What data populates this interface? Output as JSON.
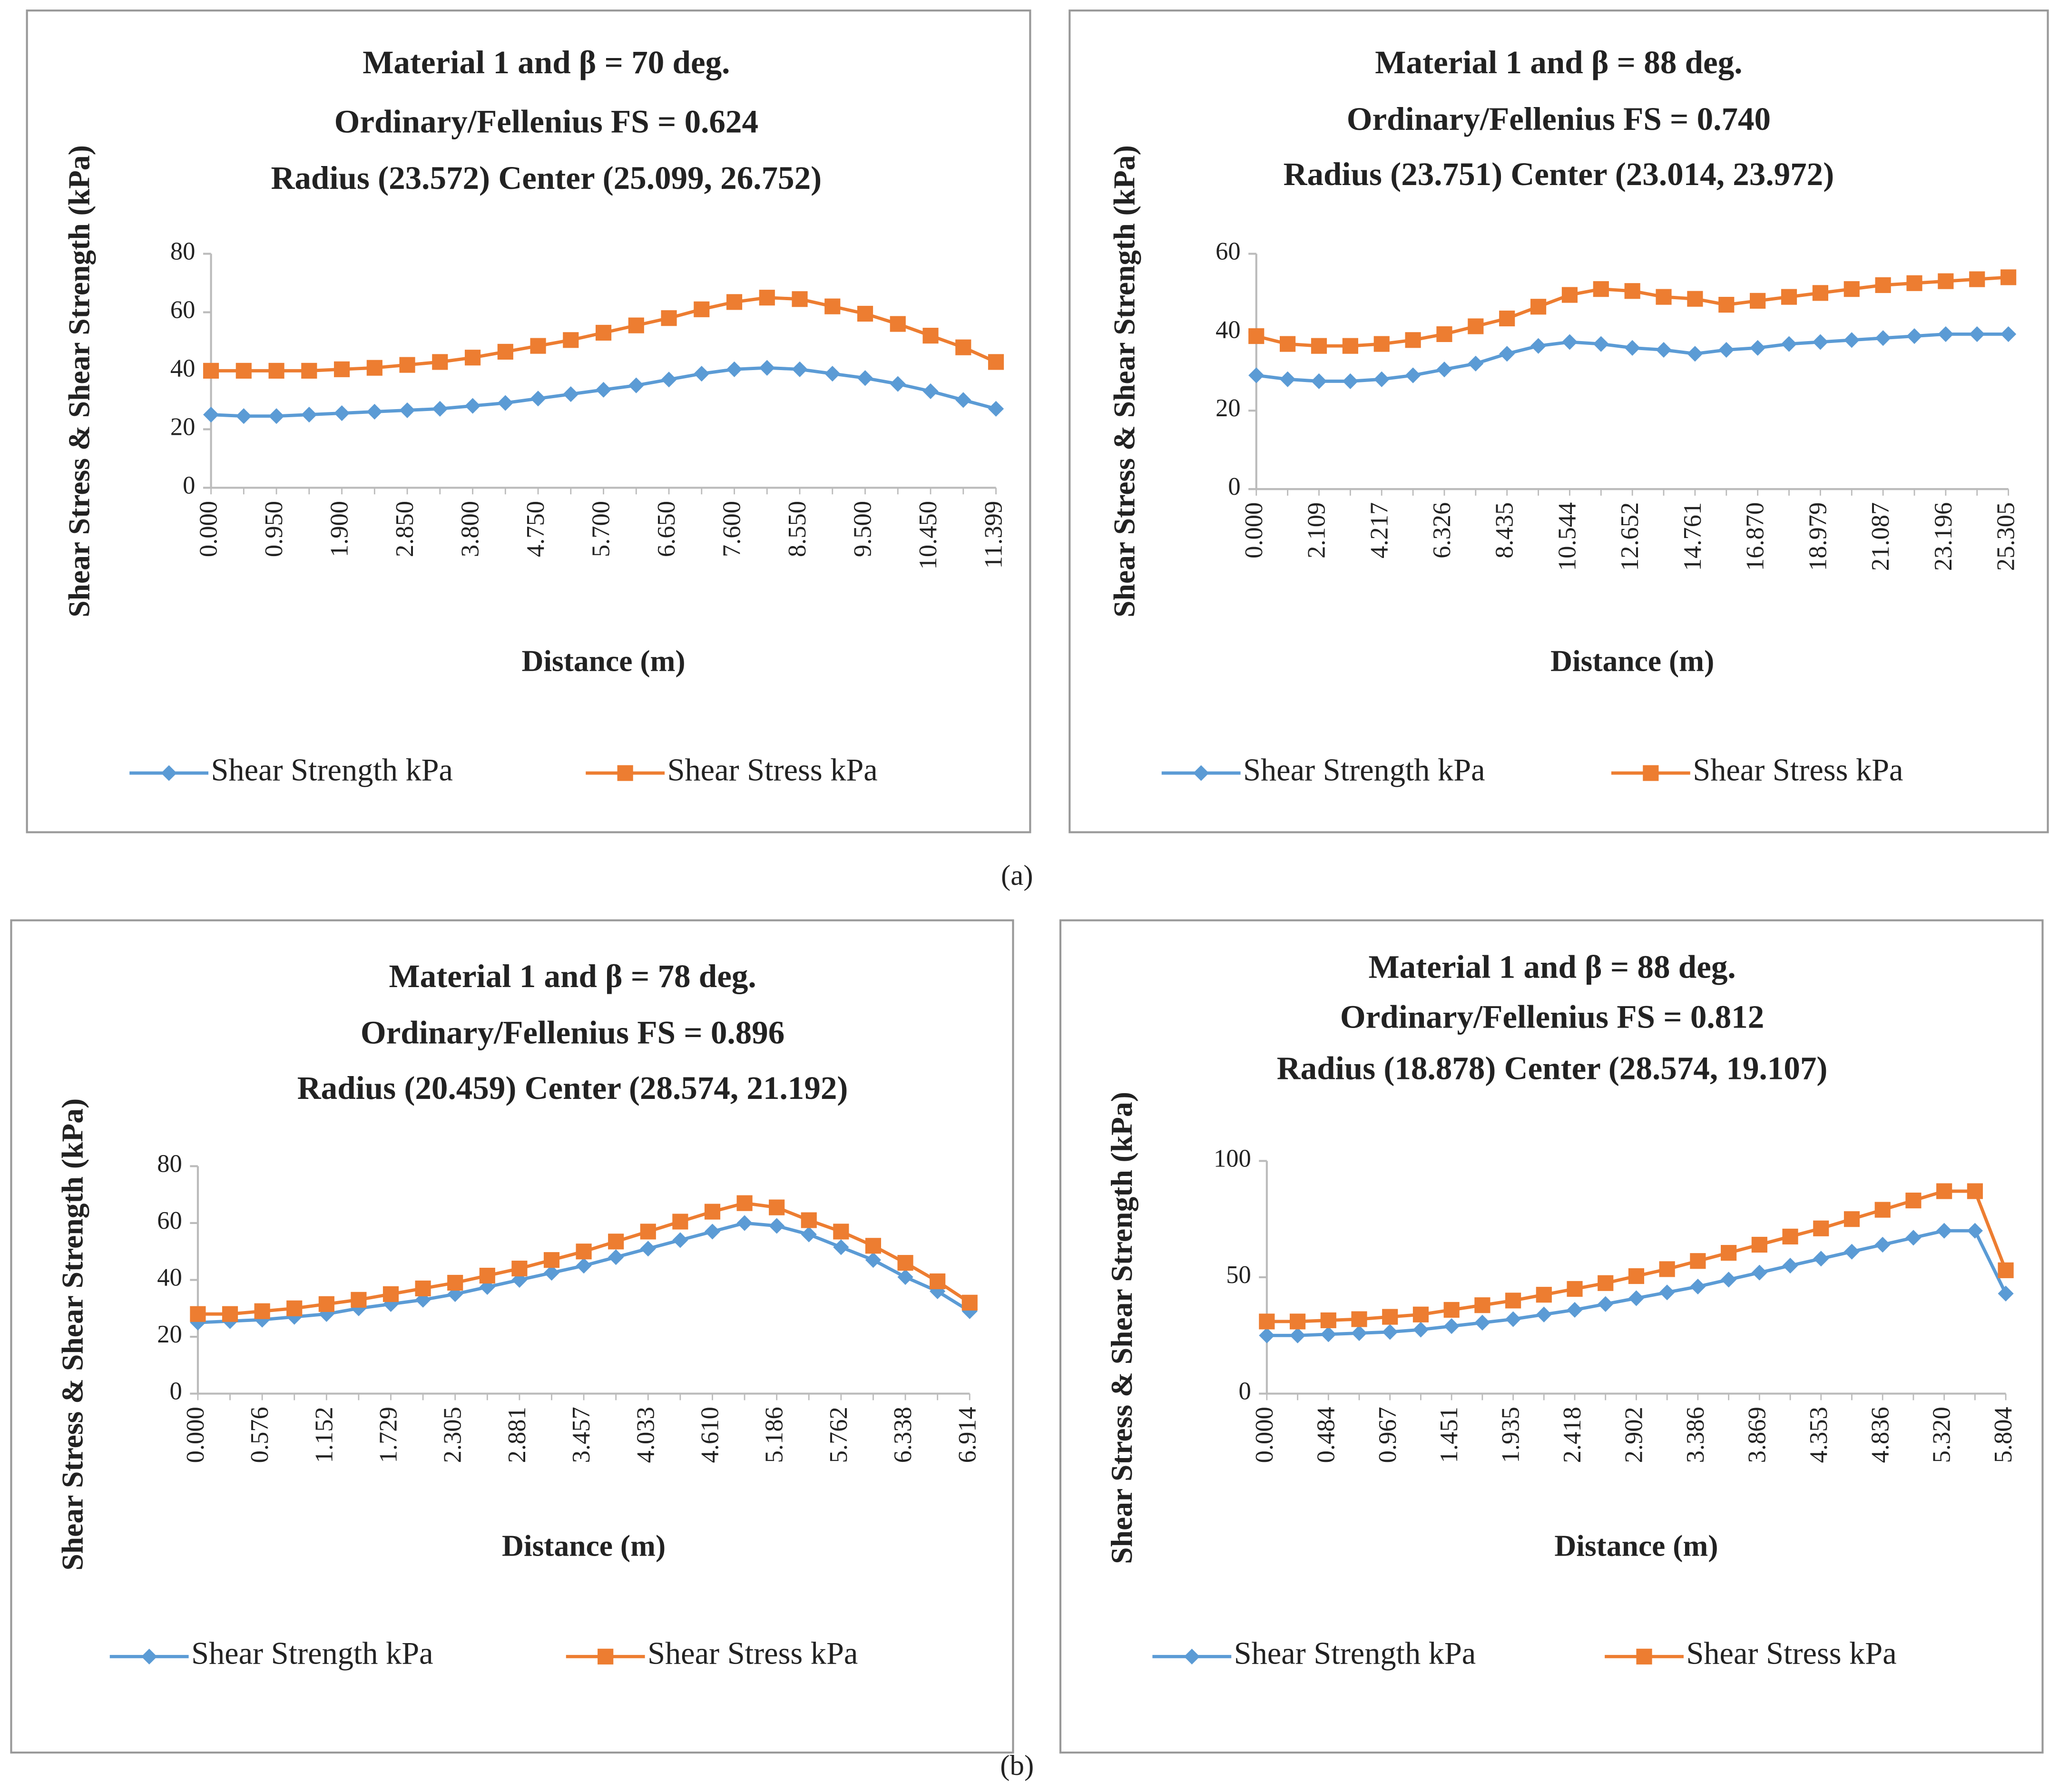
{
  "captions": [
    "(a)",
    "(b)"
  ],
  "chart_data": [
    {
      "type": "line",
      "title": [
        "Material 1 and β = 70 deg.",
        "Ordinary/Fellenius FS = 0.624",
        "Radius (23.572)  Center (25.099, 26.752)"
      ],
      "x_label": "Distance (m)",
      "y_label": "Shear Stress & Shear Strength (kPa)",
      "categories": [
        "0.000",
        null,
        "0.950",
        null,
        "1.900",
        null,
        "2.850",
        null,
        "3.800",
        null,
        "4.750",
        null,
        "5.700",
        null,
        "6.650",
        null,
        "7.600",
        null,
        "8.550",
        null,
        "9.500",
        null,
        "10.450",
        null,
        "11.399"
      ],
      "series": [
        {
          "name": "Shear Strength kPa",
          "color": "#5b9bd5",
          "values": [
            25,
            24.5,
            24.5,
            25,
            25.5,
            26,
            26.5,
            27,
            28,
            29,
            30.5,
            32,
            33.5,
            35,
            37,
            39,
            40.5,
            41,
            40.5,
            39,
            37.5,
            35.5,
            33,
            30,
            27
          ]
        },
        {
          "name": "Shear Stress kPa",
          "color": "#ed7d31",
          "values": [
            40,
            40,
            40,
            40,
            40.5,
            41,
            42,
            43,
            44.5,
            46.5,
            48.5,
            50.5,
            53,
            55.5,
            58,
            61,
            63.5,
            65,
            64.5,
            62,
            59.5,
            56,
            52,
            48,
            43
          ]
        }
      ],
      "ylim": [
        0,
        80
      ],
      "yticks": [
        0,
        20,
        40,
        60,
        80
      ],
      "legend": "bottom"
    },
    {
      "type": "line",
      "title": [
        "Material 1 and β = 88 deg.",
        "Ordinary/Fellenius FS = 0.740",
        "Radius (23.751)  Center (23.014, 23.972)"
      ],
      "x_label": "Distance (m)",
      "y_label": "Shear Stress & Shear Strength (kPa)",
      "categories": [
        "0.000",
        null,
        "2.109",
        null,
        "4.217",
        null,
        "6.326",
        null,
        "8.435",
        null,
        "10.544",
        null,
        "12.652",
        null,
        "14.761",
        null,
        "16.870",
        null,
        "18.979",
        null,
        "21.087",
        null,
        "23.196",
        null,
        "25.305"
      ],
      "series": [
        {
          "name": "Shear Strength kPa",
          "color": "#5b9bd5",
          "values": [
            29,
            28,
            27.5,
            27.5,
            28,
            29,
            30.5,
            32,
            34.5,
            36.5,
            37.5,
            37,
            36,
            35.5,
            34.5,
            35.5,
            36,
            37,
            37.5,
            38,
            38.5,
            39,
            39.5,
            39.5,
            39.5
          ]
        },
        {
          "name": "Shear Stress kPa",
          "color": "#ed7d31",
          "values": [
            39,
            37,
            36.5,
            36.5,
            37,
            38,
            39.5,
            41.5,
            43.5,
            46.5,
            49.5,
            51,
            50.5,
            49,
            48.5,
            47,
            48,
            49,
            50,
            51,
            52,
            52.5,
            53,
            53.5,
            54
          ]
        }
      ],
      "ylim": [
        0,
        60
      ],
      "yticks": [
        0,
        20,
        40,
        60
      ],
      "legend": "bottom"
    },
    {
      "type": "line",
      "title": [
        "Material 1 and β = 78 deg.",
        "Ordinary/Fellenius FS = 0.896",
        "Radius (20.459)  Center (28.574, 21.192)"
      ],
      "x_label": "Distance (m)",
      "y_label": "Shear Stress & Shear Strength (kPa)",
      "categories": [
        "0.000",
        null,
        "0.576",
        null,
        "1.152",
        null,
        "1.729",
        null,
        "2.305",
        null,
        "2.881",
        null,
        "3.457",
        null,
        "4.033",
        null,
        "4.610",
        null,
        "5.186",
        null,
        "5.762",
        null,
        "6.338",
        null,
        "6.914"
      ],
      "series": [
        {
          "name": "Shear Strength kPa",
          "color": "#5b9bd5",
          "values": [
            25,
            25.5,
            26,
            27,
            28,
            30,
            31.5,
            33,
            35,
            37.5,
            40,
            42.5,
            45,
            48,
            51,
            54,
            57,
            60,
            59,
            56,
            51.5,
            47,
            41,
            36,
            29
          ]
        },
        {
          "name": "Shear Stress kPa",
          "color": "#ed7d31",
          "values": [
            28,
            28,
            29,
            30,
            31.5,
            33,
            35,
            37,
            39,
            41.5,
            44,
            47,
            50,
            53.5,
            57,
            60.5,
            64,
            67,
            65.5,
            61,
            57,
            52,
            46,
            39.5,
            32
          ]
        }
      ],
      "ylim": [
        0,
        80
      ],
      "yticks": [
        0,
        20,
        40,
        60,
        80
      ],
      "legend": "bottom"
    },
    {
      "type": "line",
      "title": [
        "Material 1 and β = 88 deg.",
        "Ordinary/Fellenius FS = 0.812",
        "Radius (18.878)  Center (28.574, 19.107)"
      ],
      "x_label": "Distance (m)",
      "y_label": "Shear Stress & Shear Strength (kPa)",
      "categories": [
        "0.000",
        null,
        "0.484",
        null,
        "0.967",
        null,
        "1.451",
        null,
        "1.935",
        null,
        "2.418",
        null,
        "2.902",
        null,
        "3.386",
        null,
        "3.869",
        null,
        "4.353",
        null,
        "4.836",
        null,
        "5.320",
        null,
        "5.804"
      ],
      "series": [
        {
          "name": "Shear Strength kPa",
          "color": "#5b9bd5",
          "values": [
            25,
            25,
            25.5,
            26,
            26.5,
            27.5,
            29,
            30.5,
            32,
            34,
            36,
            38.5,
            41,
            43.5,
            46,
            49,
            52,
            55,
            58,
            61,
            64,
            67,
            70,
            70,
            43
          ]
        },
        {
          "name": "Shear Stress kPa",
          "color": "#ed7d31",
          "values": [
            31,
            31,
            31.5,
            32,
            33,
            34,
            36,
            38,
            40,
            42.5,
            45,
            47.5,
            50.5,
            53.5,
            57,
            60.5,
            64,
            67.5,
            71,
            75,
            79,
            83,
            87,
            87,
            53
          ]
        }
      ],
      "ylim": [
        0,
        100
      ],
      "yticks": [
        0,
        50,
        100
      ],
      "legend": "bottom"
    }
  ]
}
